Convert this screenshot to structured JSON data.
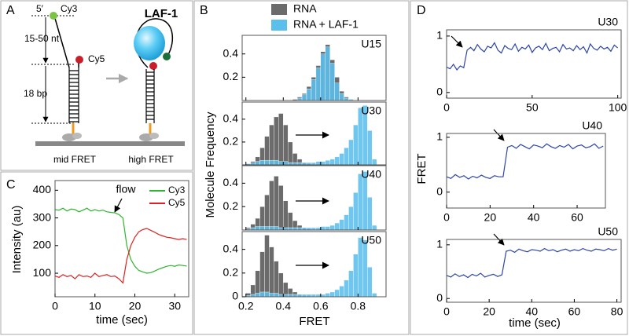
{
  "panel_labels": [
    "A",
    "B",
    "C",
    "D"
  ],
  "diagram": {
    "labels": {
      "five_prime": "5′",
      "cy3": "Cy3",
      "length": "15-50 nt",
      "cy5": "Cy5",
      "stem": "18 bp",
      "protein": "LAF-1",
      "mid": "mid FRET",
      "high": "high FRET"
    }
  },
  "chart_data": [
    {
      "type": "histogram",
      "xlabel": "FRET",
      "ylabel": "Molecule Frequency",
      "xlim": [
        0.18,
        0.95
      ],
      "xticks": [
        0.2,
        0.4,
        0.6,
        0.8
      ],
      "bins": [
        0.2,
        0.225,
        0.25,
        0.275,
        0.3,
        0.325,
        0.35,
        0.375,
        0.4,
        0.425,
        0.45,
        0.475,
        0.5,
        0.525,
        0.55,
        0.575,
        0.6,
        0.625,
        0.65,
        0.675,
        0.7,
        0.725,
        0.75,
        0.775,
        0.8,
        0.825,
        0.85,
        0.875,
        0.9
      ],
      "legend": [
        {
          "name": "RNA",
          "color": "#6b6b6b"
        },
        {
          "name": "RNA + LAF-1",
          "color": "#5bbfee"
        }
      ],
      "subplots": [
        {
          "label": "U15",
          "ylim": [
            0,
            0.56
          ],
          "yticks": [
            0.2,
            0.4
          ],
          "series": [
            [
              0,
              0,
              0,
              0,
              0,
              0,
              0,
              0,
              0,
              0,
              0.01,
              0.03,
              0.06,
              0.12,
              0.2,
              0.3,
              0.42,
              0.48,
              0.35,
              0.2,
              0.08,
              0.03,
              0.01,
              0,
              0,
              0,
              0,
              0
            ],
            [
              0,
              0,
              0,
              0,
              0,
              0,
              0,
              0,
              0,
              0,
              0,
              0.02,
              0.05,
              0.1,
              0.18,
              0.28,
              0.4,
              0.46,
              0.32,
              0.15,
              0.06,
              0.02,
              0.01,
              0,
              0,
              0,
              0,
              0
            ]
          ]
        },
        {
          "label": "U30",
          "ylim": [
            0,
            0.55
          ],
          "yticks": [
            0.2,
            0.4
          ],
          "series": [
            [
              0.01,
              0.03,
              0.07,
              0.15,
              0.25,
              0.35,
              0.42,
              0.45,
              0.35,
              0.2,
              0.1,
              0.05,
              0.02,
              0.01,
              0,
              0,
              0,
              0,
              0,
              0,
              0,
              0,
              0,
              0,
              0,
              0,
              0,
              0
            ],
            [
              0.01,
              0.02,
              0.03,
              0.04,
              0.04,
              0.04,
              0.04,
              0.03,
              0.03,
              0.02,
              0.02,
              0.02,
              0.02,
              0.02,
              0.02,
              0.03,
              0.03,
              0.04,
              0.05,
              0.07,
              0.1,
              0.15,
              0.22,
              0.35,
              0.5,
              0.52,
              0.3,
              0.05
            ]
          ]
        },
        {
          "label": "U40",
          "ylim": [
            0,
            0.55
          ],
          "yticks": [
            0.2,
            0.4
          ],
          "series": [
            [
              0.02,
              0.05,
              0.1,
              0.2,
              0.3,
              0.42,
              0.46,
              0.38,
              0.25,
              0.15,
              0.08,
              0.04,
              0.02,
              0.01,
              0,
              0,
              0,
              0,
              0,
              0,
              0,
              0,
              0,
              0,
              0,
              0,
              0,
              0
            ],
            [
              0.01,
              0.02,
              0.03,
              0.03,
              0.03,
              0.03,
              0.03,
              0.02,
              0.02,
              0.02,
              0.02,
              0.02,
              0.02,
              0.02,
              0.02,
              0.02,
              0.03,
              0.03,
              0.04,
              0.06,
              0.09,
              0.13,
              0.2,
              0.32,
              0.48,
              0.5,
              0.28,
              0.04
            ]
          ]
        },
        {
          "label": "U50",
          "ylim": [
            0,
            0.55
          ],
          "yticks": [
            0,
            0.2,
            0.4
          ],
          "series": [
            [
              0.03,
              0.1,
              0.22,
              0.38,
              0.52,
              0.42,
              0.3,
              0.2,
              0.12,
              0.07,
              0.04,
              0.02,
              0.01,
              0.01,
              0,
              0,
              0,
              0,
              0,
              0,
              0,
              0,
              0,
              0,
              0,
              0,
              0,
              0
            ],
            [
              0.01,
              0.02,
              0.03,
              0.04,
              0.04,
              0.03,
              0.03,
              0.02,
              0.02,
              0.02,
              0.02,
              0.02,
              0.02,
              0.02,
              0.02,
              0.02,
              0.02,
              0.03,
              0.04,
              0.06,
              0.09,
              0.14,
              0.22,
              0.36,
              0.5,
              0.48,
              0.25,
              0.03
            ]
          ]
        }
      ]
    },
    {
      "type": "line",
      "xlabel": "time (sec)",
      "ylabel": "Intensity (au)",
      "annotation": "flow",
      "xlim": [
        0,
        33.5
      ],
      "ylim": [
        15,
        435
      ],
      "xticks": [
        0,
        10,
        20,
        30
      ],
      "yticks": [
        100,
        200,
        300,
        400
      ],
      "x": [
        0,
        1,
        2,
        3,
        4,
        5,
        6,
        7,
        8,
        9,
        10,
        11,
        12,
        13,
        14,
        15,
        16,
        17,
        18,
        19,
        20,
        21,
        22,
        23,
        24,
        25,
        26,
        27,
        28,
        29,
        30,
        31,
        32,
        33
      ],
      "series": [
        {
          "name": "Cy3",
          "color": "#2fb52f",
          "values": [
            330,
            328,
            335,
            325,
            332,
            330,
            322,
            328,
            335,
            325,
            330,
            325,
            328,
            322,
            320,
            318,
            312,
            300,
            200,
            150,
            125,
            110,
            105,
            100,
            102,
            108,
            115,
            120,
            125,
            128,
            125,
            130,
            128,
            126
          ]
        },
        {
          "name": "Cy5",
          "color": "#e02020",
          "values": [
            90,
            85,
            95,
            88,
            92,
            80,
            95,
            88,
            90,
            85,
            100,
            88,
            92,
            95,
            88,
            90,
            80,
            65,
            150,
            200,
            230,
            250,
            258,
            262,
            255,
            248,
            240,
            235,
            230,
            228,
            225,
            222,
            225,
            222
          ]
        }
      ]
    },
    {
      "type": "line",
      "xlabel": "time (sec)",
      "ylabel": "FRET",
      "color": "#2c45a8",
      "subplots": [
        {
          "label": "U30",
          "xlim": [
            0,
            102
          ],
          "ylim": [
            -0.1,
            1.11
          ],
          "xticks": [
            0,
            50,
            100
          ],
          "yticks": [
            0,
            1
          ],
          "x": [
            0,
            2,
            4,
            6,
            8,
            10,
            12,
            14,
            16,
            18,
            20,
            22,
            24,
            26,
            28,
            30,
            32,
            34,
            36,
            38,
            40,
            42,
            44,
            46,
            48,
            50,
            52,
            54,
            56,
            58,
            60,
            62,
            64,
            66,
            68,
            70,
            72,
            74,
            76,
            78,
            80,
            82,
            84,
            86,
            88,
            90,
            92,
            94,
            96,
            98,
            100
          ],
          "values": [
            0.45,
            0.42,
            0.5,
            0.4,
            0.47,
            0.44,
            0.75,
            0.8,
            0.74,
            0.85,
            0.77,
            0.72,
            0.82,
            0.79,
            0.88,
            0.75,
            0.7,
            0.83,
            0.78,
            0.76,
            0.86,
            0.73,
            0.8,
            0.77,
            0.84,
            0.71,
            0.79,
            0.82,
            0.76,
            0.87,
            0.74,
            0.78,
            0.8,
            0.72,
            0.85,
            0.77,
            0.79,
            0.74,
            0.83,
            0.76,
            0.81,
            0.7,
            0.86,
            0.78,
            0.75,
            0.82,
            0.77,
            0.8,
            0.73,
            0.84,
            0.79
          ]
        },
        {
          "label": "U40",
          "xlim": [
            0,
            73
          ],
          "ylim": [
            -0.29,
            1.07
          ],
          "xticks": [
            0,
            20,
            40,
            60
          ],
          "yticks": [
            0,
            1
          ],
          "x": [
            0,
            2,
            4,
            6,
            8,
            10,
            12,
            14,
            16,
            18,
            20,
            22,
            24,
            26,
            28,
            30,
            32,
            34,
            36,
            38,
            40,
            42,
            44,
            46,
            48,
            50,
            52,
            54,
            56,
            58,
            60,
            62,
            64,
            66,
            68,
            70,
            72
          ],
          "values": [
            0.28,
            0.25,
            0.32,
            0.27,
            0.3,
            0.24,
            0.29,
            0.26,
            0.31,
            0.27,
            0.25,
            0.3,
            0.28,
            0.28,
            0.82,
            0.85,
            0.8,
            0.87,
            0.83,
            0.79,
            0.86,
            0.84,
            0.81,
            0.88,
            0.83,
            0.8,
            0.85,
            0.82,
            0.87,
            0.79,
            0.84,
            0.86,
            0.81,
            0.83,
            0.88,
            0.8,
            0.84
          ]
        },
        {
          "label": "U50",
          "xlim": [
            0,
            82
          ],
          "ylim": [
            -0.07,
            1.1
          ],
          "xticks": [
            0,
            20,
            40,
            60,
            80
          ],
          "yticks": [
            0,
            1
          ],
          "x": [
            0,
            2,
            4,
            6,
            8,
            10,
            12,
            14,
            16,
            18,
            20,
            22,
            24,
            26,
            28,
            30,
            32,
            34,
            36,
            38,
            40,
            42,
            44,
            46,
            48,
            50,
            52,
            54,
            56,
            58,
            60,
            62,
            64,
            66,
            68,
            70,
            72,
            74,
            76,
            78,
            80
          ],
          "values": [
            0.43,
            0.4,
            0.46,
            0.41,
            0.44,
            0.39,
            0.45,
            0.42,
            0.47,
            0.4,
            0.43,
            0.45,
            0.41,
            0.44,
            0.88,
            0.9,
            0.86,
            0.92,
            0.89,
            0.87,
            0.91,
            0.9,
            0.88,
            0.93,
            0.89,
            0.91,
            0.87,
            0.9,
            0.92,
            0.88,
            0.91,
            0.89,
            0.93,
            0.9,
            0.88,
            0.92,
            0.91,
            0.89,
            0.93,
            0.9,
            0.92
          ]
        }
      ]
    }
  ]
}
